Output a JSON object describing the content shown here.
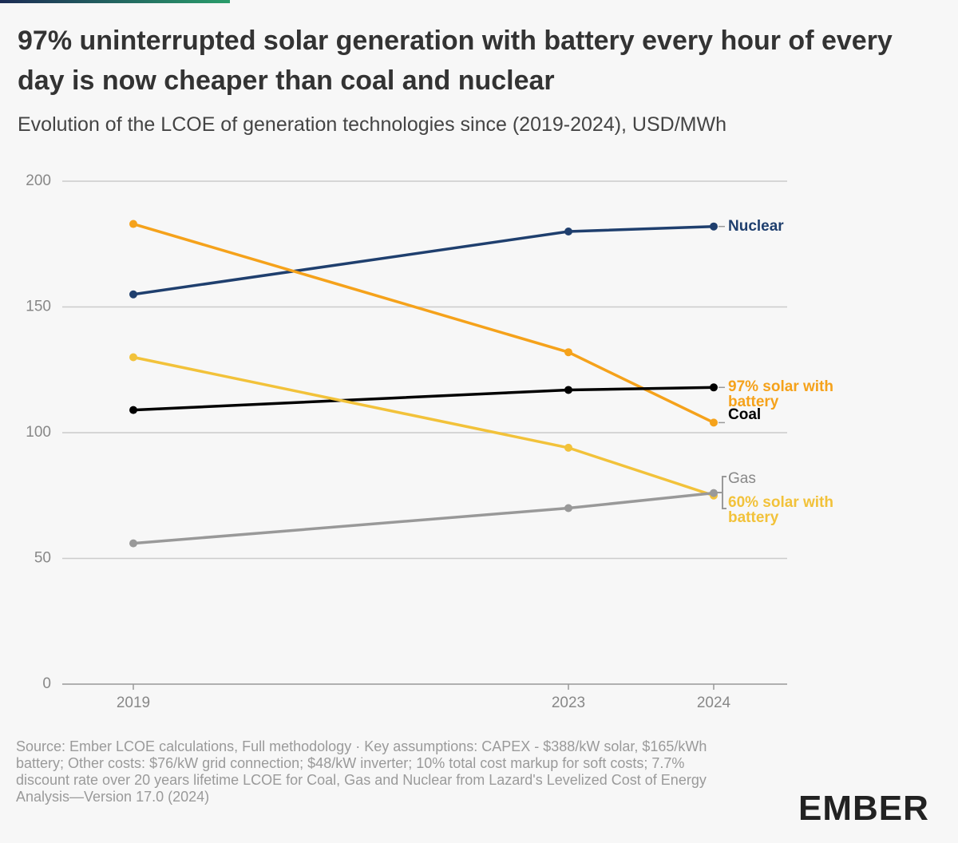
{
  "chart_data": {
    "type": "line",
    "title": "97% uninterrupted solar generation with battery every hour of every day is now cheaper than coal and nuclear",
    "subtitle": "Evolution of the LCOE of generation technologies since (2019-2024), USD/MWh",
    "categories": [
      "2019",
      "2023",
      "2024"
    ],
    "series": [
      {
        "name": "Nuclear",
        "color": "#1f3f6e",
        "values": [
          155,
          180,
          182
        ]
      },
      {
        "name": "97% solar with battery",
        "color": "#f5a21b",
        "values": [
          183,
          132,
          104
        ]
      },
      {
        "name": "Coal",
        "color": "#000000",
        "values": [
          109,
          117,
          118
        ]
      },
      {
        "name": "60% solar with battery",
        "color": "#f2c23a",
        "values": [
          130,
          94,
          75
        ]
      },
      {
        "name": "Gas",
        "color": "#999999",
        "values": [
          56,
          70,
          76
        ]
      }
    ],
    "ylim": [
      0,
      200
    ],
    "yticks": [
      0,
      50,
      100,
      150,
      200
    ],
    "grid": true,
    "source": "Source: Ember LCOE calculations, Full methodology · Key assumptions: CAPEX - $388/kW solar, $165/kWh battery; Other costs: $76/kW grid connection; $48/kW inverter; 10% total cost markup for soft costs; 7.7% discount rate over 20 years lifetime LCOE for Coal, Gas and Nuclear from Lazard's Levelized Cost of Energy Analysis—Version 17.0 (2024)",
    "brand": "EMBER"
  }
}
